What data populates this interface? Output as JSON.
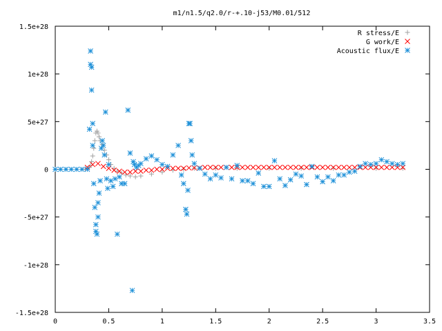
{
  "chart_data": {
    "type": "scatter",
    "title": "m1/n1.5/q2.0/r-+.10-j53/M0.01/512",
    "xlabel": "",
    "ylabel": "",
    "xlim": [
      0,
      3.5
    ],
    "ylim": [
      -1.5e+28,
      1.5e+28
    ],
    "x_ticks": [
      0,
      0.5,
      1,
      1.5,
      2,
      2.5,
      3,
      3.5
    ],
    "x_tick_labels": [
      "0",
      "0.5",
      "1",
      "1.5",
      "2",
      "2.5",
      "3",
      "3.5"
    ],
    "y_ticks": [
      -1.5e+28,
      -1e+28,
      -5e+27,
      0,
      5e+27,
      1e+28,
      1.5e+28
    ],
    "y_tick_labels": [
      "-1.5e+28",
      "-1e+28",
      "-5e+27",
      "0",
      "5e+27",
      "1e+28",
      "1.5e+28"
    ],
    "grid": false,
    "legend_position": "top-right",
    "series": [
      {
        "name": "R stress/E",
        "color": "#a0a0a0",
        "marker": "plus",
        "x": [
          0.0,
          0.1,
          0.2,
          0.28,
          0.3,
          0.32,
          0.33,
          0.34,
          0.35,
          0.36,
          0.37,
          0.38,
          0.39,
          0.4,
          0.41,
          0.42,
          0.44,
          0.46,
          0.48,
          0.5,
          0.52,
          0.55,
          0.58,
          0.62,
          0.66,
          0.7,
          0.75,
          0.8,
          0.9,
          1.0,
          1.1,
          1.2,
          1.3,
          1.5,
          1.7,
          2.0,
          2.3,
          2.6,
          3.0,
          3.25
        ],
        "y": [
          0,
          0,
          0,
          2e+25,
          1e+26,
          2e+26,
          4e+26,
          8e+26,
          1.4e+27,
          2.2e+27,
          3e+27,
          3.8e+27,
          4e+27,
          3.8e+27,
          3.4e+27,
          3e+27,
          2.6e+27,
          2e+27,
          1.5e+27,
          1e+27,
          5e+26,
          1e+26,
          -2e+26,
          -4e+26,
          -6e+26,
          -7e+26,
          -8e+26,
          -7e+26,
          -5e+26,
          -3e+26,
          -1e+26,
          0,
          1e+26,
          1e+26,
          1e+26,
          1e+26,
          1e+26,
          1e+26,
          1e+26,
          1e+26
        ]
      },
      {
        "name": "G work/E",
        "color": "#ff0000",
        "marker": "cross",
        "x": [
          0.3,
          0.35,
          0.4,
          0.45,
          0.5,
          0.55,
          0.6,
          0.65,
          0.7,
          0.75,
          0.8,
          0.85,
          0.9,
          0.95,
          1.0,
          1.05,
          1.1,
          1.15,
          1.2,
          1.25,
          1.3,
          1.35,
          1.4,
          1.45,
          1.5,
          1.55,
          1.6,
          1.65,
          1.7,
          1.75,
          1.8,
          1.85,
          1.9,
          1.95,
          2.0,
          2.05,
          2.1,
          2.15,
          2.2,
          2.25,
          2.3,
          2.35,
          2.4,
          2.45,
          2.5,
          2.55,
          2.6,
          2.65,
          2.7,
          2.75,
          2.8,
          2.85,
          2.9,
          2.95,
          3.0,
          3.05,
          3.1,
          3.15,
          3.2,
          3.25
        ],
        "y": [
          2e+26,
          5e+26,
          6e+26,
          3e+26,
          1e+26,
          -1e+26,
          -2e+26,
          -3e+26,
          -3e+26,
          -2e+26,
          -2e+26,
          -1e+26,
          -1e+26,
          0,
          0,
          1e+26,
          1e+26,
          1e+26,
          1e+26,
          1.5e+26,
          1.5e+26,
          1.5e+26,
          2e+26,
          2e+26,
          2e+26,
          2e+26,
          2e+26,
          2e+26,
          2e+26,
          2e+26,
          2e+26,
          2e+26,
          2e+26,
          2e+26,
          2e+26,
          2e+26,
          2e+26,
          2e+26,
          2e+26,
          2e+26,
          2e+26,
          2e+26,
          2e+26,
          2e+26,
          2e+26,
          2e+26,
          2e+26,
          2e+26,
          2e+26,
          2e+26,
          2e+26,
          2e+26,
          2e+26,
          2e+26,
          2e+26,
          2e+26,
          2e+26,
          2e+26,
          2e+26,
          2e+26
        ]
      },
      {
        "name": "Acoustic flux/E",
        "color": "#1e90d8",
        "marker": "star",
        "x": [
          0.0,
          0.05,
          0.1,
          0.15,
          0.2,
          0.25,
          0.3,
          0.32,
          0.33,
          0.33,
          0.34,
          0.34,
          0.35,
          0.35,
          0.36,
          0.37,
          0.38,
          0.38,
          0.39,
          0.4,
          0.4,
          0.41,
          0.42,
          0.43,
          0.44,
          0.45,
          0.46,
          0.47,
          0.48,
          0.49,
          0.5,
          0.52,
          0.54,
          0.56,
          0.58,
          0.6,
          0.62,
          0.65,
          0.68,
          0.7,
          0.72,
          0.73,
          0.74,
          0.76,
          0.78,
          0.8,
          0.85,
          0.9,
          0.95,
          1.0,
          1.05,
          1.1,
          1.15,
          1.18,
          1.2,
          1.22,
          1.23,
          1.24,
          1.25,
          1.26,
          1.27,
          1.28,
          1.3,
          1.35,
          1.4,
          1.45,
          1.5,
          1.55,
          1.6,
          1.65,
          1.7,
          1.75,
          1.8,
          1.85,
          1.9,
          1.95,
          2.0,
          2.05,
          2.1,
          2.15,
          2.2,
          2.25,
          2.3,
          2.35,
          2.4,
          2.45,
          2.5,
          2.55,
          2.6,
          2.65,
          2.7,
          2.75,
          2.8,
          2.85,
          2.9,
          2.95,
          3.0,
          3.05,
          3.1,
          3.15,
          3.2,
          3.25
        ],
        "y": [
          0,
          0,
          0,
          0,
          0,
          0,
          0,
          4.2e+27,
          1.24e+28,
          1.1e+28,
          1.07e+28,
          8.3e+27,
          4.8e+27,
          2.5e+27,
          -1.5e+27,
          -4e+27,
          -5.8e+27,
          -6.5e+27,
          -6.8e+27,
          -5e+27,
          -3.5e+27,
          -2.5e+27,
          -1.2e+27,
          2.2e+27,
          3e+27,
          2.5e+27,
          1.5e+27,
          6e+27,
          -1e+27,
          -2e+27,
          5e+26,
          -1.2e+27,
          -1.8e+27,
          -1e+27,
          -6.8e+27,
          -8e+26,
          -1.5e+27,
          -1.5e+27,
          6.2e+27,
          1.7e+27,
          -1.27e+28,
          8e+26,
          5e+26,
          2e+26,
          4e+26,
          6e+26,
          1.1e+27,
          1.4e+27,
          1e+27,
          5e+26,
          3e+26,
          1.5e+27,
          2.5e+27,
          -6e+26,
          -1.5e+27,
          -4.2e+27,
          -4.7e+27,
          -2.2e+27,
          4.8e+27,
          4.8e+27,
          3e+27,
          1.5e+27,
          6e+26,
          1e+26,
          -5e+26,
          -1e+27,
          -6e+26,
          -9e+26,
          2e+26,
          -1e+27,
          4e+26,
          -1.2e+27,
          -1.2e+27,
          -1.5e+27,
          -4e+26,
          -1.8e+27,
          -1.8e+27,
          9e+26,
          -1e+27,
          -1.7e+27,
          -1.1e+27,
          -5e+26,
          -7e+26,
          -1.6e+27,
          3e+26,
          -8e+26,
          -1.3e+27,
          -8e+26,
          -1.2e+27,
          -6e+26,
          -6e+26,
          -3e+26,
          -2e+26,
          3e+26,
          6e+26,
          5e+26,
          6e+26,
          1e+27,
          8e+26,
          6e+26,
          5e+26,
          6e+26
        ]
      }
    ]
  }
}
